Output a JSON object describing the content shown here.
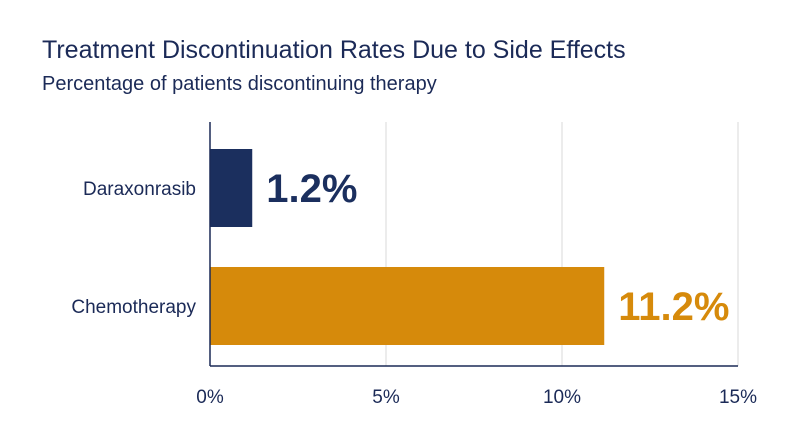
{
  "chart_data": {
    "type": "bar",
    "orientation": "horizontal",
    "title": "Treatment Discontinuation Rates Due to Side Effects",
    "subtitle": "Percentage of patients discontinuing therapy",
    "categories": [
      "Daraxonrasib",
      "Chemotherapy"
    ],
    "values": [
      1.2,
      11.2
    ],
    "value_labels": [
      "1.2%",
      "11.2%"
    ],
    "bar_colors": [
      "#1b2f5e",
      "#d68a0b"
    ],
    "xlim": [
      0,
      15
    ],
    "xticks": [
      0,
      5,
      10,
      15
    ],
    "xtick_labels": [
      "0%",
      "5%",
      "10%",
      "15%"
    ],
    "xlabel": "",
    "ylabel": "",
    "grid": "vertical"
  }
}
